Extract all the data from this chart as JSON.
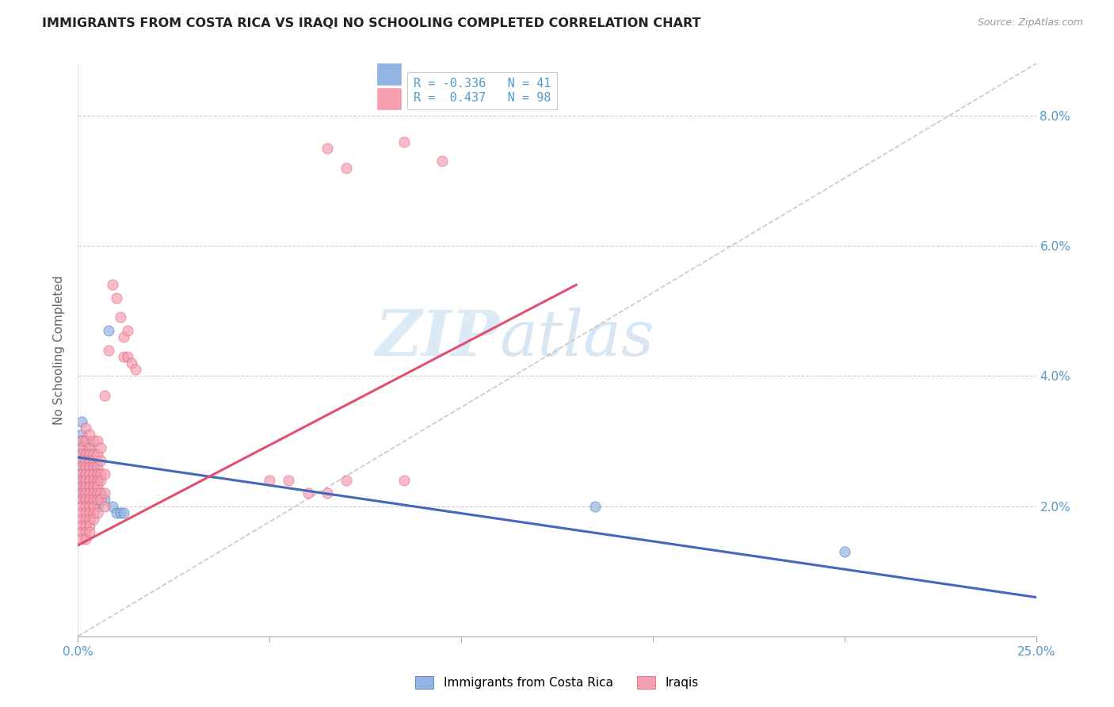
{
  "title": "IMMIGRANTS FROM COSTA RICA VS IRAQI NO SCHOOLING COMPLETED CORRELATION CHART",
  "source": "Source: ZipAtlas.com",
  "ylabel": "No Schooling Completed",
  "xlim": [
    0.0,
    0.25
  ],
  "ylim": [
    0.0,
    0.088
  ],
  "color_blue": "#92B4E3",
  "color_pink": "#F4A0B0",
  "color_blue_line": "#4466BB",
  "color_pink_line": "#E05070",
  "color_dashed": "#C8C8C8",
  "watermark_zip": "ZIP",
  "watermark_atlas": "atlas",
  "title_color": "#222222",
  "axis_label_color": "#5599CC",
  "blue_r": -0.336,
  "blue_n": 41,
  "pink_r": 0.437,
  "pink_n": 98,
  "blue_line_x": [
    0.0,
    0.25
  ],
  "blue_line_y": [
    0.0275,
    0.006
  ],
  "pink_line_x": [
    0.0,
    0.13
  ],
  "pink_line_y": [
    0.014,
    0.054
  ],
  "blue_scatter": [
    [
      0.001,
      0.033
    ],
    [
      0.001,
      0.031
    ],
    [
      0.001,
      0.03
    ],
    [
      0.001,
      0.029
    ],
    [
      0.001,
      0.028
    ],
    [
      0.001,
      0.027
    ],
    [
      0.001,
      0.026
    ],
    [
      0.001,
      0.025
    ],
    [
      0.001,
      0.024
    ],
    [
      0.001,
      0.023
    ],
    [
      0.001,
      0.022
    ],
    [
      0.001,
      0.021
    ],
    [
      0.002,
      0.03
    ],
    [
      0.002,
      0.028
    ],
    [
      0.002,
      0.026
    ],
    [
      0.002,
      0.025
    ],
    [
      0.002,
      0.024
    ],
    [
      0.002,
      0.023
    ],
    [
      0.002,
      0.022
    ],
    [
      0.002,
      0.021
    ],
    [
      0.003,
      0.029
    ],
    [
      0.003,
      0.027
    ],
    [
      0.003,
      0.025
    ],
    [
      0.003,
      0.023
    ],
    [
      0.003,
      0.022
    ],
    [
      0.003,
      0.021
    ],
    [
      0.004,
      0.026
    ],
    [
      0.004,
      0.024
    ],
    [
      0.004,
      0.022
    ],
    [
      0.005,
      0.024
    ],
    [
      0.005,
      0.022
    ],
    [
      0.005,
      0.02
    ],
    [
      0.006,
      0.022
    ],
    [
      0.007,
      0.021
    ],
    [
      0.009,
      0.02
    ],
    [
      0.01,
      0.019
    ],
    [
      0.011,
      0.019
    ],
    [
      0.012,
      0.019
    ],
    [
      0.008,
      0.047
    ],
    [
      0.135,
      0.02
    ],
    [
      0.2,
      0.013
    ]
  ],
  "pink_scatter": [
    [
      0.001,
      0.03
    ],
    [
      0.001,
      0.029
    ],
    [
      0.001,
      0.028
    ],
    [
      0.001,
      0.027
    ],
    [
      0.001,
      0.026
    ],
    [
      0.001,
      0.025
    ],
    [
      0.001,
      0.024
    ],
    [
      0.001,
      0.023
    ],
    [
      0.001,
      0.022
    ],
    [
      0.001,
      0.021
    ],
    [
      0.001,
      0.02
    ],
    [
      0.001,
      0.019
    ],
    [
      0.001,
      0.018
    ],
    [
      0.001,
      0.017
    ],
    [
      0.001,
      0.016
    ],
    [
      0.001,
      0.015
    ],
    [
      0.002,
      0.032
    ],
    [
      0.002,
      0.03
    ],
    [
      0.002,
      0.028
    ],
    [
      0.002,
      0.027
    ],
    [
      0.002,
      0.026
    ],
    [
      0.002,
      0.025
    ],
    [
      0.002,
      0.024
    ],
    [
      0.002,
      0.023
    ],
    [
      0.002,
      0.022
    ],
    [
      0.002,
      0.021
    ],
    [
      0.002,
      0.02
    ],
    [
      0.002,
      0.019
    ],
    [
      0.002,
      0.018
    ],
    [
      0.002,
      0.017
    ],
    [
      0.002,
      0.016
    ],
    [
      0.002,
      0.015
    ],
    [
      0.003,
      0.031
    ],
    [
      0.003,
      0.029
    ],
    [
      0.003,
      0.028
    ],
    [
      0.003,
      0.027
    ],
    [
      0.003,
      0.026
    ],
    [
      0.003,
      0.025
    ],
    [
      0.003,
      0.024
    ],
    [
      0.003,
      0.023
    ],
    [
      0.003,
      0.022
    ],
    [
      0.003,
      0.021
    ],
    [
      0.003,
      0.02
    ],
    [
      0.003,
      0.019
    ],
    [
      0.003,
      0.018
    ],
    [
      0.003,
      0.017
    ],
    [
      0.003,
      0.016
    ],
    [
      0.004,
      0.03
    ],
    [
      0.004,
      0.028
    ],
    [
      0.004,
      0.027
    ],
    [
      0.004,
      0.026
    ],
    [
      0.004,
      0.025
    ],
    [
      0.004,
      0.024
    ],
    [
      0.004,
      0.023
    ],
    [
      0.004,
      0.022
    ],
    [
      0.004,
      0.021
    ],
    [
      0.004,
      0.02
    ],
    [
      0.004,
      0.019
    ],
    [
      0.004,
      0.018
    ],
    [
      0.005,
      0.03
    ],
    [
      0.005,
      0.028
    ],
    [
      0.005,
      0.026
    ],
    [
      0.005,
      0.025
    ],
    [
      0.005,
      0.024
    ],
    [
      0.005,
      0.023
    ],
    [
      0.005,
      0.022
    ],
    [
      0.005,
      0.021
    ],
    [
      0.005,
      0.019
    ],
    [
      0.006,
      0.029
    ],
    [
      0.006,
      0.027
    ],
    [
      0.006,
      0.025
    ],
    [
      0.006,
      0.024
    ],
    [
      0.006,
      0.022
    ],
    [
      0.006,
      0.021
    ],
    [
      0.007,
      0.037
    ],
    [
      0.007,
      0.025
    ],
    [
      0.007,
      0.022
    ],
    [
      0.007,
      0.02
    ],
    [
      0.008,
      0.044
    ],
    [
      0.009,
      0.054
    ],
    [
      0.01,
      0.052
    ],
    [
      0.011,
      0.049
    ],
    [
      0.012,
      0.046
    ],
    [
      0.012,
      0.043
    ],
    [
      0.013,
      0.047
    ],
    [
      0.013,
      0.043
    ],
    [
      0.014,
      0.042
    ],
    [
      0.015,
      0.041
    ],
    [
      0.05,
      0.024
    ],
    [
      0.055,
      0.024
    ],
    [
      0.06,
      0.022
    ],
    [
      0.065,
      0.022
    ],
    [
      0.07,
      0.024
    ],
    [
      0.085,
      0.024
    ],
    [
      0.085,
      0.076
    ],
    [
      0.095,
      0.073
    ],
    [
      0.065,
      0.075
    ],
    [
      0.07,
      0.072
    ]
  ]
}
